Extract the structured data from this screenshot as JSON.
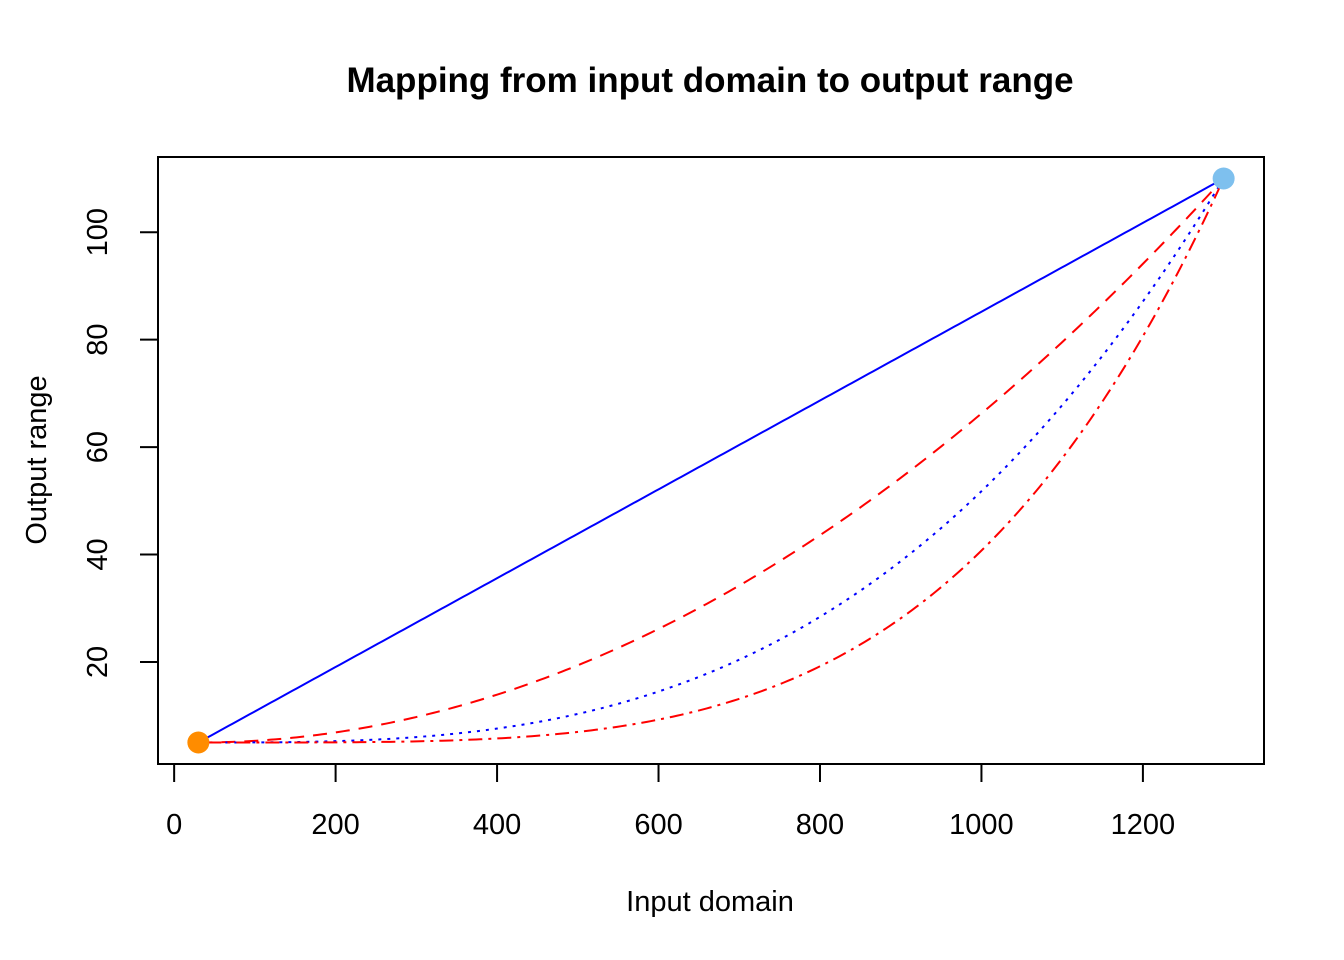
{
  "chart_data": {
    "type": "line",
    "title": "Mapping from input domain to output range",
    "xlabel": "Input domain",
    "ylabel": "Output range",
    "xlim": [
      -20,
      1350
    ],
    "ylim": [
      1,
      114
    ],
    "x_ticks": [
      0,
      200,
      400,
      600,
      800,
      1000,
      1200
    ],
    "y_ticks": [
      20,
      40,
      60,
      80,
      100
    ],
    "grid": false,
    "legend": "none",
    "domain": [
      30,
      1300
    ],
    "range": [
      5,
      110
    ],
    "series": [
      {
        "exponent": 1,
        "color": "#0000ff",
        "dash": "solid"
      },
      {
        "exponent": 2,
        "color": "#ff0000",
        "dash": "dashed"
      },
      {
        "exponent": 3,
        "color": "#0000ff",
        "dash": "dotted"
      },
      {
        "exponent": 4,
        "color": "#ff0000",
        "dash": "dotdash"
      }
    ],
    "points": [
      {
        "x": 30,
        "y": 5,
        "color": "#ff8c00"
      },
      {
        "x": 1300,
        "y": 110,
        "color": "#7ec0ee"
      }
    ]
  }
}
